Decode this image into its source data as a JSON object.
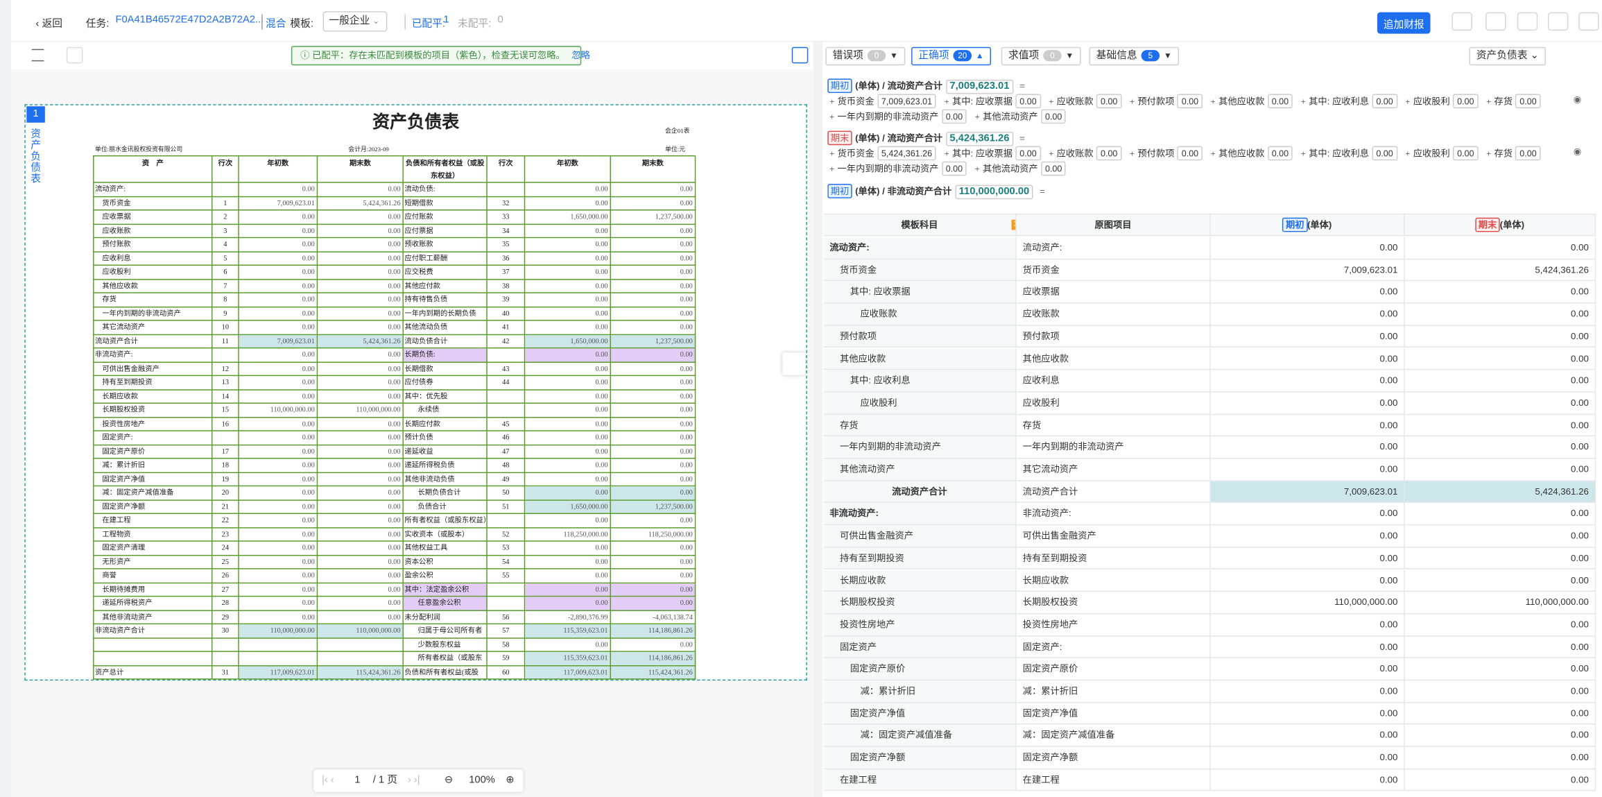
{
  "header": {
    "back": "返回",
    "task_label": "任务:",
    "task_id": "F0A41B46572E47D2A2B72A2...",
    "mode": "混合",
    "template_label": "模板:",
    "template": "一般企业",
    "matched_label": "已配平:",
    "matched_count": "1",
    "unmatched_label": "未配平:",
    "unmatched_count": "0",
    "add_report": "追加财报"
  },
  "toolbar": {
    "notice": "已配平：存在未匹配到模板的项目（紫色），检查无误可忽略。",
    "ignore": "忽略"
  },
  "side_tab": {
    "page": "1",
    "label": "资产负债表"
  },
  "document": {
    "title": "资产负债表",
    "code": "会企01表",
    "company": "单位:丽水金讯股权投资有限公司",
    "period": "会计月:2023-09",
    "unit": "单位:元",
    "columns": [
      "资　产",
      "行次",
      "年初数",
      "期末数",
      "负债和所有者权益（或股东权益）",
      "行次",
      "年初数",
      "期末数"
    ],
    "rows": [
      [
        "流动资产:",
        "",
        "0.00",
        "0.00",
        "流动负债:",
        "",
        "0.00",
        "0.00"
      ],
      [
        "货币资金",
        "1",
        "7,009,623.01",
        "5,424,361.26",
        "短期借款",
        "32",
        "0.00",
        "0.00"
      ],
      [
        "应收票据",
        "2",
        "0.00",
        "0.00",
        "应付账款",
        "33",
        "1,650,000.00",
        "1,237,500.00"
      ],
      [
        "应收账款",
        "3",
        "0.00",
        "0.00",
        "应付票据",
        "34",
        "0.00",
        "0.00"
      ],
      [
        "预付账款",
        "4",
        "0.00",
        "0.00",
        "预收账款",
        "35",
        "0.00",
        "0.00"
      ],
      [
        "应收利息",
        "5",
        "0.00",
        "0.00",
        "应付职工薪酬",
        "36",
        "0.00",
        "0.00"
      ],
      [
        "应收股利",
        "6",
        "0.00",
        "0.00",
        "应交税费",
        "37",
        "0.00",
        "0.00"
      ],
      [
        "其他应收款",
        "7",
        "0.00",
        "0.00",
        "其他应付款",
        "38",
        "0.00",
        "0.00"
      ],
      [
        "存货",
        "8",
        "0.00",
        "0.00",
        "持有待售负债",
        "39",
        "0.00",
        "0.00"
      ],
      [
        "一年内到期的非流动资产",
        "9",
        "0.00",
        "0.00",
        "一年内到期的长期负债",
        "40",
        "0.00",
        "0.00"
      ],
      [
        "其它流动资产",
        "10",
        "0.00",
        "0.00",
        "其他流动负债",
        "41",
        "0.00",
        "0.00"
      ],
      [
        "流动资产合计",
        "11",
        "7,009,623.01",
        "5,424,361.26",
        "流动负债合计",
        "42",
        "1,650,000.00",
        "1,237,500.00"
      ],
      [
        "非流动资产:",
        "",
        "0.00",
        "0.00",
        "长期负债:",
        "",
        "0.00",
        "0.00"
      ],
      [
        "可供出售金融资产",
        "12",
        "0.00",
        "0.00",
        "长期借款",
        "43",
        "0.00",
        "0.00"
      ],
      [
        "持有至到期投资",
        "13",
        "0.00",
        "0.00",
        "应付债券",
        "44",
        "0.00",
        "0.00"
      ],
      [
        "长期应收款",
        "14",
        "0.00",
        "0.00",
        "其中：优先股",
        "",
        "0.00",
        "0.00"
      ],
      [
        "长期股权投资",
        "15",
        "110,000,000.00",
        "110,000,000.00",
        "永续债",
        "",
        "0.00",
        "0.00"
      ],
      [
        "投资性房地产",
        "16",
        "0.00",
        "0.00",
        "长期应付款",
        "45",
        "0.00",
        "0.00"
      ],
      [
        "固定资产:",
        "",
        "0.00",
        "0.00",
        "预计负债",
        "46",
        "0.00",
        "0.00"
      ],
      [
        "固定资产原价",
        "17",
        "0.00",
        "0.00",
        "递延收益",
        "47",
        "0.00",
        "0.00"
      ],
      [
        "减：累计折旧",
        "18",
        "0.00",
        "0.00",
        "递延所得税负债",
        "48",
        "0.00",
        "0.00"
      ],
      [
        "固定资产净值",
        "19",
        "0.00",
        "0.00",
        "其他非流动负债",
        "49",
        "0.00",
        "0.00"
      ],
      [
        "减：固定资产减值准备",
        "20",
        "0.00",
        "0.00",
        "长期负债合计",
        "50",
        "0.00",
        "0.00"
      ],
      [
        "固定资产净额",
        "21",
        "0.00",
        "0.00",
        "负债合计",
        "51",
        "1,650,000.00",
        "1,237,500.00"
      ],
      [
        "在建工程",
        "22",
        "0.00",
        "0.00",
        "所有者权益（或股东权益）:",
        "",
        "0.00",
        "0.00"
      ],
      [
        "工程物资",
        "23",
        "0.00",
        "0.00",
        "实收资本（或股本）",
        "52",
        "118,250,000.00",
        "118,250,000.00"
      ],
      [
        "固定资产清理",
        "24",
        "0.00",
        "0.00",
        "其他权益工具",
        "53",
        "0.00",
        "0.00"
      ],
      [
        "无形资产",
        "25",
        "0.00",
        "0.00",
        "资本公积",
        "54",
        "0.00",
        "0.00"
      ],
      [
        "商誉",
        "26",
        "0.00",
        "0.00",
        "盈余公积",
        "55",
        "0.00",
        "0.00"
      ],
      [
        "长期待摊费用",
        "27",
        "0.00",
        "0.00",
        "其中：法定盈余公积",
        "",
        "0.00",
        "0.00"
      ],
      [
        "递延所得税资产",
        "28",
        "0.00",
        "0.00",
        "任意盈余公积",
        "",
        "0.00",
        "0.00"
      ],
      [
        "其他非流动资产",
        "29",
        "0.00",
        "0.00",
        "未分配利润",
        "56",
        "-2,890,376.99",
        "-4,063,138.74"
      ],
      [
        "非流动资产合计",
        "30",
        "110,000,000.00",
        "110,000,000.00",
        "归属于母公司所有者",
        "57",
        "115,359,623.01",
        "114,186,861.26"
      ],
      [
        "",
        "",
        "",
        "",
        "少数股东权益",
        "58",
        "0.00",
        "0.00"
      ],
      [
        "",
        "",
        "",
        "",
        "所有者权益（或股东",
        "59",
        "115,359,623.01",
        "114,186,861.26"
      ],
      [
        "资产总计",
        "31",
        "117,009,623.01",
        "115,424,361.26",
        "负债和所有者权益(或股",
        "60",
        "117,009,623.01",
        "115,424,361.26"
      ]
    ]
  },
  "pager": {
    "page": "1",
    "total": "/ 1 页",
    "zoom": "100%"
  },
  "right_panel": {
    "filters": [
      {
        "label": "错误项",
        "count": "0"
      },
      {
        "label": "正确项",
        "count": "20"
      },
      {
        "label": "求值项",
        "count": "0"
      },
      {
        "label": "基础信息",
        "count": "5"
      }
    ],
    "sheet": "资产负债表",
    "formulas": [
      {
        "tag": "期初",
        "title": "(单体) / 流动资产合计",
        "value": "7,009,623.01",
        "terms": [
          [
            "货币资金",
            "7,009,623.01"
          ],
          [
            "其中: 应收票据",
            "0.00"
          ],
          [
            "应收账款",
            "0.00"
          ],
          [
            "预付款项",
            "0.00"
          ],
          [
            "其他应收款",
            "0.00"
          ],
          [
            "其中: 应收利息",
            "0.00"
          ],
          [
            "应收股利",
            "0.00"
          ],
          [
            "存货",
            "0.00"
          ],
          [
            "一年内到期的非流动资产",
            "0.00"
          ],
          [
            "其他流动资产",
            "0.00"
          ]
        ]
      },
      {
        "tag": "期末",
        "title": "(单体) / 流动资产合计",
        "value": "5,424,361.26",
        "terms": [
          [
            "货币资金",
            "5,424,361.26"
          ],
          [
            "其中: 应收票据",
            "0.00"
          ],
          [
            "应收账款",
            "0.00"
          ],
          [
            "预付款项",
            "0.00"
          ],
          [
            "其他应收款",
            "0.00"
          ],
          [
            "其中: 应收利息",
            "0.00"
          ],
          [
            "应收股利",
            "0.00"
          ],
          [
            "存货",
            "0.00"
          ],
          [
            "一年内到期的非流动资产",
            "0.00"
          ],
          [
            "其他流动资产",
            "0.00"
          ]
        ]
      },
      {
        "tag": "期初",
        "title": "(单体) / 非流动资产合计",
        "value": "110,000,000.00",
        "terms": []
      }
    ],
    "grid": {
      "col_template": "模板科目",
      "badge": "14",
      "col_original": "原图项目",
      "col_start_tag": "期初",
      "col_start": "(单体)",
      "col_end_tag": "期末",
      "col_end": "(单体)",
      "rows": [
        [
          "流动资产:",
          "流动资产:",
          "0.00",
          "0.00"
        ],
        [
          "货币资金",
          "货币资金",
          "7,009,623.01",
          "5,424,361.26"
        ],
        [
          "其中: 应收票据",
          "应收票据",
          "0.00",
          "0.00"
        ],
        [
          "应收账款",
          "应收账款",
          "0.00",
          "0.00"
        ],
        [
          "预付款项",
          "预付款项",
          "0.00",
          "0.00"
        ],
        [
          "其他应收款",
          "其他应收款",
          "0.00",
          "0.00"
        ],
        [
          "其中: 应收利息",
          "应收利息",
          "0.00",
          "0.00"
        ],
        [
          "应收股利",
          "应收股利",
          "0.00",
          "0.00"
        ],
        [
          "存货",
          "存货",
          "0.00",
          "0.00"
        ],
        [
          "一年内到期的非流动资产",
          "一年内到期的非流动资产",
          "0.00",
          "0.00"
        ],
        [
          "其他流动资产",
          "其它流动资产",
          "0.00",
          "0.00"
        ],
        [
          "流动资产合计",
          "流动资产合计",
          "7,009,623.01",
          "5,424,361.26"
        ],
        [
          "非流动资产:",
          "非流动资产:",
          "0.00",
          "0.00"
        ],
        [
          "可供出售金融资产",
          "可供出售金融资产",
          "0.00",
          "0.00"
        ],
        [
          "持有至到期投资",
          "持有至到期投资",
          "0.00",
          "0.00"
        ],
        [
          "长期应收款",
          "长期应收款",
          "0.00",
          "0.00"
        ],
        [
          "长期股权投资",
          "长期股权投资",
          "110,000,000.00",
          "110,000,000.00"
        ],
        [
          "投资性房地产",
          "投资性房地产",
          "0.00",
          "0.00"
        ],
        [
          "固定资产",
          "固定资产:",
          "0.00",
          "0.00"
        ],
        [
          "固定资产原价",
          "固定资产原价",
          "0.00",
          "0.00"
        ],
        [
          "减：累计折旧",
          "减：累计折旧",
          "0.00",
          "0.00"
        ],
        [
          "固定资产净值",
          "固定资产净值",
          "0.00",
          "0.00"
        ],
        [
          "减：固定资产减值准备",
          "减：固定资产减值准备",
          "0.00",
          "0.00"
        ],
        [
          "固定资产净额",
          "固定资产净额",
          "0.00",
          "0.00"
        ],
        [
          "在建工程",
          "在建工程",
          "0.00",
          "0.00"
        ]
      ]
    }
  }
}
